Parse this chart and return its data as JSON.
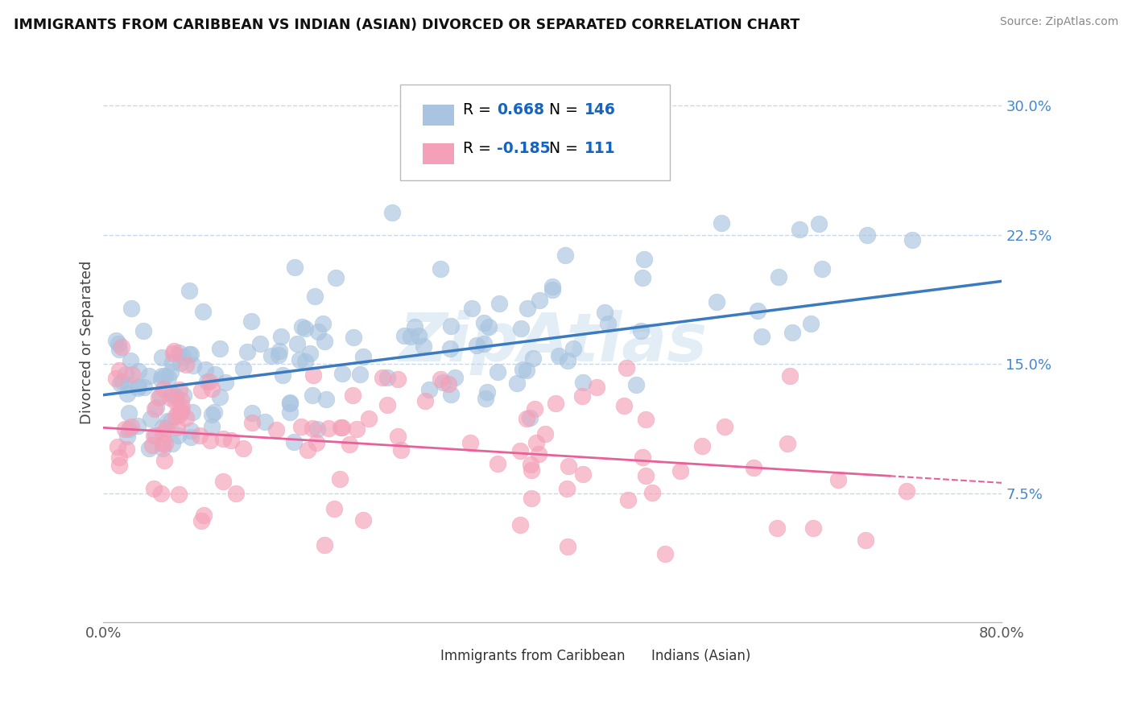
{
  "title": "IMMIGRANTS FROM CARIBBEAN VS INDIAN (ASIAN) DIVORCED OR SEPARATED CORRELATION CHART",
  "source_text": "Source: ZipAtlas.com",
  "ylabel": "Divorced or Separated",
  "ytick_values": [
    0.075,
    0.15,
    0.225,
    0.3
  ],
  "ytick_labels": [
    "7.5%",
    "15.0%",
    "22.5%",
    "30.0%"
  ],
  "xmin": 0.0,
  "xmax": 0.8,
  "ymin": 0.0,
  "ymax": 0.325,
  "watermark": "ZipAtlas",
  "legend_caribbean_r": "0.668",
  "legend_caribbean_n": "146",
  "legend_indian_r": "-0.185",
  "legend_indian_n": "111",
  "caribbean_color": "#a8c4e0",
  "indian_color": "#f4a0b8",
  "trendline_caribbean_color": "#3a7abf",
  "trendline_indian_color": "#e8609a",
  "legend_text_color": "#000000",
  "legend_value_color": "#1565c0",
  "background_color": "#ffffff",
  "grid_color": "#c8d8e8",
  "title_color": "#111111",
  "ytick_color": "#4488cc",
  "xtick_color": "#555555",
  "caribbean_trendline": {
    "x_start": 0.0,
    "x_end": 0.8,
    "y_start": 0.132,
    "y_end": 0.198
  },
  "indian_trendline": {
    "x_start": 0.0,
    "x_end": 0.7,
    "y_start": 0.113,
    "y_end": 0.085
  },
  "indian_trendline_dash": {
    "x_start": 0.7,
    "x_end": 0.8,
    "y_start": 0.085,
    "y_end": 0.081
  }
}
